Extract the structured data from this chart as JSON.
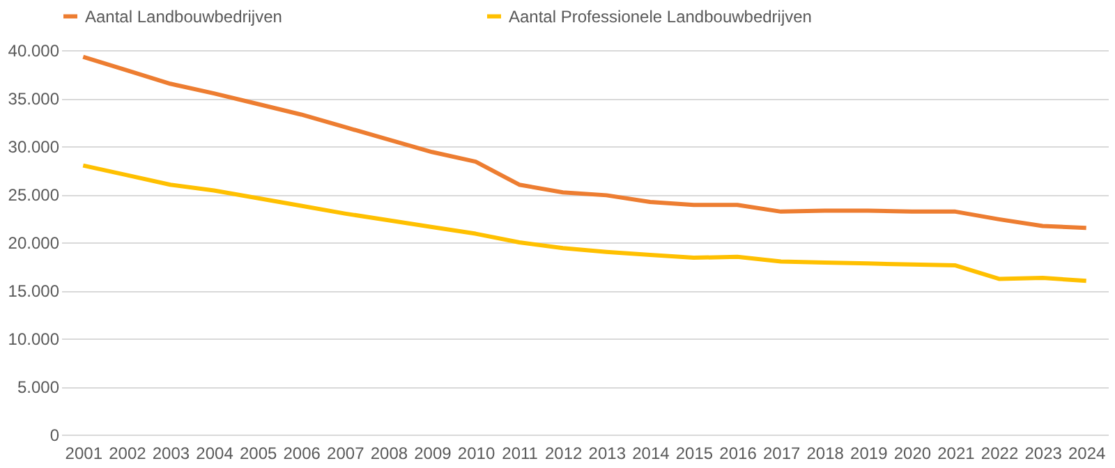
{
  "chart_data": {
    "type": "line",
    "categories": [
      "2001",
      "2002",
      "2003",
      "2004",
      "2005",
      "2006",
      "2007",
      "2008",
      "2009",
      "2010",
      "2011",
      "2012",
      "2013",
      "2014",
      "2015",
      "2016",
      "2017",
      "2018",
      "2019",
      "2020",
      "2021",
      "2022",
      "2023",
      "2024"
    ],
    "series": [
      {
        "name": "Aantal Landbouwbedrijven",
        "color": "#ed7d31",
        "values": [
          39300,
          37900,
          36500,
          35500,
          34400,
          33300,
          32000,
          30700,
          29400,
          28400,
          26000,
          25200,
          24900,
          24200,
          23900,
          23900,
          23200,
          23300,
          23300,
          23200,
          23200,
          22400,
          21700,
          21500
        ]
      },
      {
        "name": "Aantal Professionele Landbouwbedrijven",
        "color": "#ffc000",
        "values": [
          28000,
          27000,
          26000,
          25400,
          24600,
          23800,
          23000,
          22300,
          21600,
          20900,
          20000,
          19400,
          19000,
          18700,
          18400,
          18500,
          18000,
          17900,
          17800,
          17700,
          17600,
          16200,
          16300,
          16000
        ]
      }
    ],
    "ylim": [
      0,
      40000
    ],
    "yticks": [
      0,
      {
        "value": 5000,
        "label": "5.000"
      },
      {
        "value": 10000,
        "label": "10.000"
      },
      {
        "value": 15000,
        "label": "15.000"
      },
      {
        "value": 20000,
        "label": "20.000"
      },
      {
        "value": 25000,
        "label": "25.000"
      },
      {
        "value": 30000,
        "label": "30.000"
      },
      {
        "value": 35000,
        "label": "35.000"
      },
      {
        "value": 40000,
        "label": "40.000"
      }
    ],
    "grid": "y",
    "legend": "top",
    "marker": "none",
    "line_style": "solid"
  }
}
